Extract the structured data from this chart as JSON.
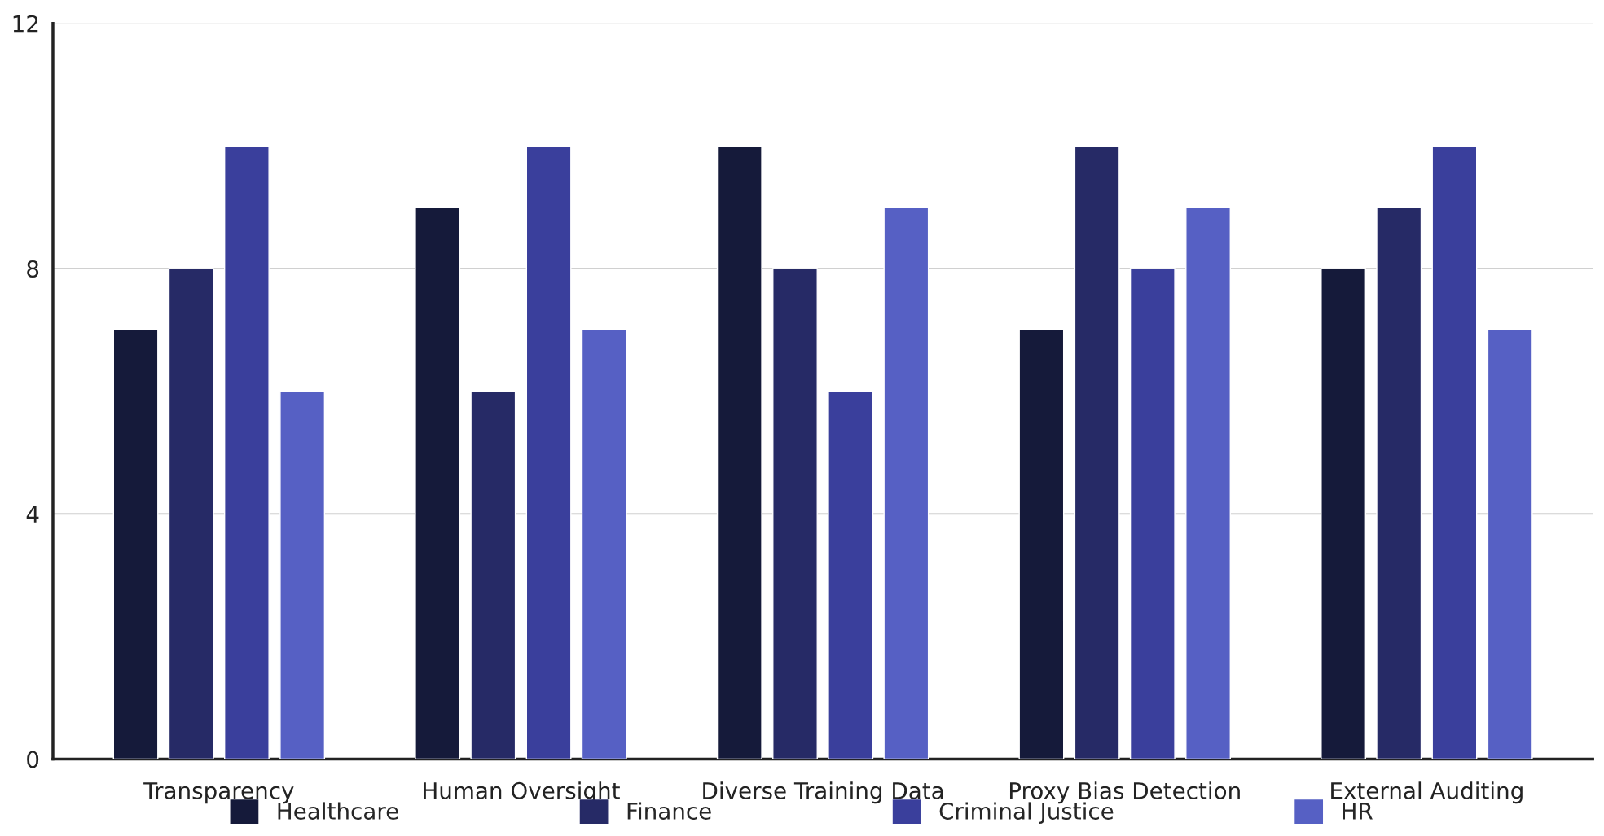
{
  "chart_data": {
    "type": "bar",
    "categories": [
      "Transparency",
      "Human Oversight",
      "Diverse Training Data",
      "Proxy Bias Detection",
      "External Auditing"
    ],
    "series": [
      {
        "name": "Healthcare",
        "color": "#151a3a",
        "values": [
          7,
          9,
          10,
          7,
          8
        ]
      },
      {
        "name": "Finance",
        "color": "#262a66",
        "values": [
          8,
          6,
          8,
          10,
          9
        ]
      },
      {
        "name": "Criminal Justice",
        "color": "#3a3f9c",
        "values": [
          10,
          10,
          6,
          8,
          10
        ]
      },
      {
        "name": "HR",
        "color": "#5660c4",
        "values": [
          6,
          7,
          9,
          9,
          7
        ]
      }
    ],
    "ylim": [
      0,
      12
    ],
    "yticks": [
      0,
      4,
      8,
      12
    ],
    "grid": "y",
    "legend": "bottom"
  }
}
